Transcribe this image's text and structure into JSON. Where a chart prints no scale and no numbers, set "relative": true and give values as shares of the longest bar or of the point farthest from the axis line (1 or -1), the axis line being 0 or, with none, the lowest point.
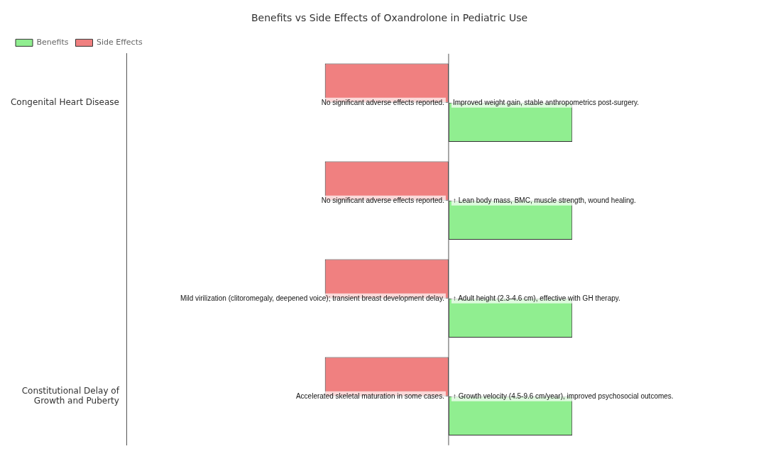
{
  "chart_data": {
    "type": "bar",
    "orientation": "horizontal",
    "relative": true,
    "title": "Benefits vs Side Effects of Oxandrolone in Pediatric Use",
    "categories": [
      "Congenital Heart Disease",
      null,
      null,
      "Constitutional Delay of Growth and Puberty"
    ],
    "series": [
      {
        "name": "Side Effects",
        "color": "#f08080",
        "values": [
          -1,
          -1,
          -1,
          -1
        ]
      },
      {
        "name": "Benefits",
        "color": "#90ee90",
        "values": [
          1,
          1,
          1,
          1
        ]
      }
    ],
    "annotations": [
      "No significant adverse effects reported.",
      "Improved weight gain, stable anthropometrics post-surgery.",
      "No significant adverse effects reported.",
      "↑ Lean body mass, BMC, muscle strength, wound healing.",
      "Mild virilization (clitoromegaly, deepened voice); transient breast development delay.",
      "↑ Adult height (2.3-4.6 cm), effective with GH therapy.",
      "Accelerated skeletal maturation in some cases.",
      "↑ Growth velocity (4.5-9.6 cm/year), improved psychosocial outcomes."
    ],
    "legend": "top left",
    "grid": false
  }
}
